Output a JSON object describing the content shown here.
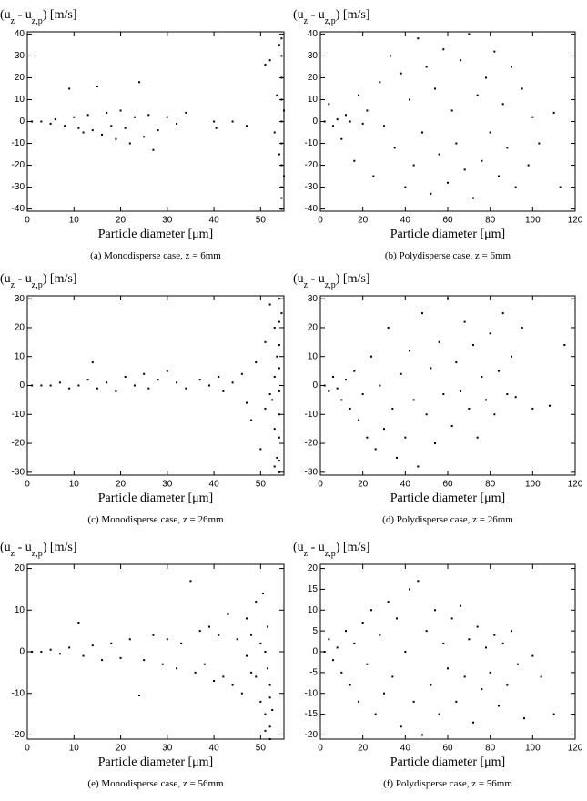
{
  "chart_data": [
    {
      "type": "scatter",
      "color": "#000000",
      "y_label": [
        "(u",
        "z",
        " - u",
        "z,p",
        ")  [m/s]"
      ],
      "x_label": "Particle diameter  [μm]",
      "caption": "(a)  Monodisperse case, z = 6mm",
      "xlim": [
        0,
        55
      ],
      "xticks": [
        0,
        10,
        20,
        30,
        40,
        50
      ],
      "ylim": [
        -41,
        41
      ],
      "yticks": [
        -40,
        -30,
        -20,
        -10,
        0,
        10,
        20,
        30,
        40
      ],
      "x": [
        1,
        3,
        5,
        6,
        8,
        9,
        10,
        11,
        12,
        13,
        14,
        15,
        16,
        17,
        18,
        19,
        20,
        21,
        22,
        23,
        24,
        25,
        26,
        27,
        28,
        30,
        32,
        34,
        40,
        40.5,
        44,
        47,
        51,
        52,
        53,
        54.5,
        54.5,
        54.5,
        54.5,
        54.5,
        54.5,
        54.5,
        54.5,
        54.5,
        54,
        55,
        54,
        55,
        53.5,
        54.5
      ],
      "values": [
        0,
        0,
        -1,
        1,
        -2,
        15,
        2,
        -3,
        -5,
        3,
        -4,
        16,
        -6,
        4,
        -2,
        -8,
        5,
        -3,
        -10,
        2,
        18,
        -7,
        3,
        -13,
        -4,
        2,
        -1,
        4,
        0,
        -3,
        0,
        -2,
        26,
        28,
        -5,
        38,
        30,
        20,
        10,
        0,
        -10,
        -20,
        -30,
        -40,
        35,
        5,
        -15,
        -25,
        12,
        -35
      ]
    },
    {
      "type": "scatter",
      "color": "#000000",
      "y_label": [
        "(u",
        "z",
        " - u",
        "z,p",
        ")  [m/s]"
      ],
      "x_label": "Particle diameter  [μm]",
      "caption": "(b)  Polydisperse case, z = 6mm",
      "xlim": [
        0,
        120
      ],
      "xticks": [
        0,
        20,
        40,
        60,
        80,
        100,
        120
      ],
      "ylim": [
        -41,
        41
      ],
      "yticks": [
        -40,
        -30,
        -20,
        -10,
        0,
        10,
        20,
        30,
        40
      ],
      "x": [
        2,
        4,
        6,
        8,
        10,
        12,
        14,
        16,
        18,
        20,
        22,
        25,
        28,
        30,
        33,
        35,
        38,
        40,
        42,
        44,
        46,
        48,
        50,
        52,
        54,
        56,
        58,
        60,
        62,
        64,
        66,
        68,
        70,
        72,
        74,
        76,
        78,
        80,
        82,
        84,
        86,
        88,
        90,
        92,
        95,
        98,
        100,
        103,
        110,
        113
      ],
      "values": [
        0,
        8,
        -2,
        1,
        -8,
        3,
        0,
        -18,
        12,
        -1,
        5,
        -25,
        18,
        -2,
        30,
        -12,
        22,
        -30,
        10,
        -20,
        38,
        -5,
        25,
        -33,
        15,
        -15,
        33,
        -28,
        5,
        -10,
        28,
        -22,
        40,
        -35,
        12,
        -18,
        20,
        -5,
        32,
        -25,
        8,
        -12,
        25,
        -30,
        15,
        -20,
        2,
        -10,
        4,
        -30
      ]
    },
    {
      "type": "scatter",
      "color": "#000000",
      "y_label": [
        "(u",
        "z",
        " - u",
        "z,p",
        ")  [m/s]"
      ],
      "x_label": "Particle diameter  [μm]",
      "caption": "(c)  Monodisperse case, z = 26mm",
      "xlim": [
        0,
        55
      ],
      "xticks": [
        0,
        10,
        20,
        30,
        40,
        50
      ],
      "ylim": [
        -31,
        31
      ],
      "yticks": [
        -30,
        -20,
        -10,
        0,
        10,
        20,
        30
      ],
      "x": [
        1,
        3,
        5,
        7,
        9,
        11,
        13,
        14,
        15,
        17,
        19,
        21,
        23,
        25,
        26,
        28,
        30,
        32,
        34,
        37,
        39,
        41,
        42,
        44,
        46,
        47,
        48,
        49,
        50,
        51,
        52,
        52.5,
        53,
        53,
        53.5,
        54,
        54,
        54,
        54,
        54,
        54,
        54,
        54,
        54,
        53.5,
        52,
        53,
        51,
        54.5,
        53
      ],
      "values": [
        0,
        0,
        0,
        1,
        -1,
        0,
        2,
        8,
        -1,
        1,
        -2,
        3,
        0,
        4,
        -1,
        2,
        5,
        1,
        -1,
        2,
        0,
        3,
        -2,
        1,
        4,
        -6,
        -12,
        8,
        -22,
        15,
        28,
        -5,
        20,
        -15,
        -25,
        30,
        22,
        14,
        6,
        -2,
        -10,
        -18,
        -26,
        -30,
        10,
        -3,
        3,
        -8,
        25,
        -28
      ]
    },
    {
      "type": "scatter",
      "color": "#000000",
      "y_label": [
        "(u",
        "z",
        " - u",
        "z,p",
        ")  [m/s]"
      ],
      "x_label": "Particle diameter  [μm]",
      "caption": "(d)  Polydisperse case, z = 26mm",
      "xlim": [
        0,
        120
      ],
      "xticks": [
        0,
        20,
        40,
        60,
        80,
        100,
        120
      ],
      "ylim": [
        -31,
        31
      ],
      "yticks": [
        -30,
        -20,
        -10,
        0,
        10,
        20,
        30
      ],
      "x": [
        2,
        4,
        6,
        8,
        10,
        12,
        14,
        16,
        18,
        20,
        22,
        24,
        26,
        28,
        30,
        32,
        34,
        36,
        38,
        40,
        42,
        44,
        46,
        48,
        50,
        52,
        54,
        56,
        58,
        60,
        62,
        64,
        66,
        68,
        70,
        72,
        74,
        76,
        78,
        80,
        82,
        84,
        86,
        88,
        90,
        92,
        95,
        100,
        108,
        115
      ],
      "values": [
        0,
        -2,
        3,
        -1,
        -5,
        2,
        -8,
        5,
        -12,
        -3,
        -18,
        10,
        -22,
        0,
        -15,
        20,
        -8,
        -25,
        4,
        -18,
        12,
        -5,
        -28,
        25,
        -10,
        6,
        -20,
        15,
        -3,
        30,
        -14,
        8,
        -2,
        22,
        -8,
        14,
        -18,
        3,
        -5,
        18,
        -10,
        5,
        25,
        -3,
        10,
        -4,
        20,
        -8,
        -7,
        14
      ]
    },
    {
      "type": "scatter",
      "color": "#000000",
      "y_label": [
        "(u",
        "z",
        " - u",
        "z,p",
        ")  [m/s]"
      ],
      "x_label": "Particle diameter  [μm]",
      "caption": "(e)  Monodisperse case, z = 56mm",
      "xlim": [
        0,
        55
      ],
      "xticks": [
        0,
        10,
        20,
        30,
        40,
        50
      ],
      "ylim": [
        -21,
        21
      ],
      "yticks": [
        -20,
        -10,
        0,
        10,
        20
      ],
      "x": [
        1,
        3,
        5,
        7,
        9,
        11,
        12,
        14,
        16,
        18,
        20,
        22,
        24,
        25,
        27,
        29,
        30,
        32,
        33,
        35,
        36,
        37,
        38,
        39,
        40,
        41,
        42,
        43,
        44,
        45,
        46,
        47,
        48,
        49,
        50,
        50.5,
        51,
        51.5,
        52,
        52,
        52,
        51,
        52.5,
        51.5,
        50,
        49,
        48,
        52,
        51,
        47
      ],
      "values": [
        0,
        0,
        0.5,
        -0.5,
        1,
        7,
        -1,
        1.5,
        -2,
        2,
        -1.5,
        3,
        -10.5,
        -2,
        4,
        -3,
        3,
        -4,
        2,
        17,
        -5,
        5,
        -3,
        6,
        -7,
        4,
        -6,
        9,
        -8,
        3,
        -10,
        8,
        -5,
        12,
        -12,
        14,
        -15,
        6,
        -18,
        -21,
        -8,
        0,
        -14,
        -4,
        2,
        -6,
        4,
        -11,
        -19,
        -1
      ]
    },
    {
      "type": "scatter",
      "color": "#000000",
      "y_label": [
        "(u",
        "z",
        " - u",
        "z,p",
        ")  [m/s]"
      ],
      "x_label": "Particle diameter  [μm]",
      "caption": "(f)  Polydisperse case, z = 56mm",
      "xlim": [
        0,
        120
      ],
      "xticks": [
        0,
        20,
        40,
        60,
        80,
        100,
        120
      ],
      "ylim": [
        -21,
        21
      ],
      "yticks": [
        -20,
        -15,
        -10,
        -5,
        0,
        5,
        10,
        15,
        20
      ],
      "x": [
        2,
        4,
        6,
        8,
        10,
        12,
        14,
        16,
        18,
        20,
        22,
        24,
        26,
        28,
        30,
        32,
        34,
        36,
        38,
        40,
        42,
        44,
        46,
        48,
        50,
        52,
        54,
        56,
        58,
        60,
        62,
        64,
        66,
        68,
        70,
        72,
        74,
        76,
        78,
        80,
        82,
        84,
        86,
        88,
        90,
        93,
        96,
        100,
        104,
        110
      ],
      "values": [
        0,
        3,
        -2,
        1,
        -5,
        5,
        -8,
        2,
        -12,
        7,
        -3,
        10,
        -15,
        4,
        -10,
        12,
        -6,
        8,
        -18,
        0,
        15,
        -12,
        17,
        -20,
        5,
        -8,
        10,
        -15,
        2,
        -4,
        8,
        -12,
        11,
        -6,
        3,
        -17,
        6,
        -9,
        1,
        -5,
        4,
        -13,
        2,
        -8,
        5,
        -3,
        -16,
        -1,
        -6,
        -15
      ]
    }
  ]
}
